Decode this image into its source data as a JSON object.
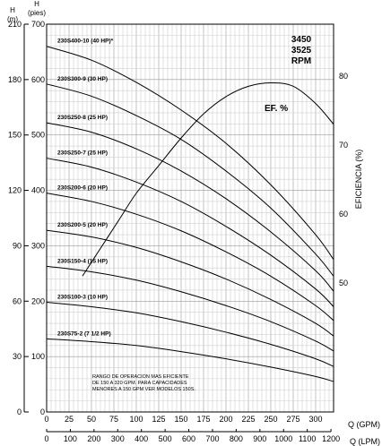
{
  "chart_data": {
    "type": "line",
    "rpm_lines": [
      "3450",
      "3525",
      "RPM"
    ],
    "x_axis": {
      "label": "Q (GPM)",
      "range": [
        0,
        320
      ],
      "ticks": [
        "0",
        "25",
        "50",
        "75",
        "100",
        "125",
        "150",
        "175",
        "200",
        "225",
        "250",
        "275",
        "300"
      ]
    },
    "x2_axis": {
      "label": "Q (LPM)",
      "range": [
        0,
        1211
      ],
      "ticks": [
        "0",
        "100",
        "200",
        "300",
        "400",
        "500",
        "600",
        "700",
        "800",
        "900",
        "1000",
        "1100",
        "1200"
      ]
    },
    "y_feet_axis": {
      "label": "H (pies)",
      "unit_line1": "H",
      "unit_line2": "(pies)",
      "range": [
        0,
        700
      ],
      "ticks": [
        "0",
        "100",
        "200",
        "300",
        "400",
        "500",
        "600",
        "700"
      ]
    },
    "y_m_axis": {
      "label": "H (m)",
      "unit_line1": "H",
      "unit_line2": "(m)",
      "range": [
        0,
        210
      ],
      "ticks": [
        "0",
        "30",
        "60",
        "90",
        "120",
        "150",
        "180",
        "210"
      ]
    },
    "y_eff_axis": {
      "label": "EFICIENCIA (%)",
      "range": [
        31.3,
        87.5
      ],
      "ticks": [
        "50",
        "60",
        "70",
        "80"
      ]
    },
    "grid": true,
    "series": [
      {
        "name": "230S400-10 (40 HP)*",
        "x": [
          0,
          50,
          100,
          150,
          200,
          250,
          300,
          320
        ],
        "y": [
          660,
          635,
          595,
          545,
          485,
          410,
          320,
          275
        ]
      },
      {
        "name": "230S300-9 (30 HP)",
        "x": [
          0,
          50,
          100,
          150,
          200,
          250,
          300,
          320
        ],
        "y": [
          592,
          570,
          535,
          492,
          435,
          368,
          285,
          245
        ]
      },
      {
        "name": "230S250-8 (25 HP)",
        "x": [
          0,
          50,
          100,
          150,
          200,
          250,
          300,
          320
        ],
        "y": [
          522,
          505,
          475,
          435,
          385,
          325,
          255,
          218
        ]
      },
      {
        "name": "230S250-7 (25 HP)",
        "x": [
          0,
          50,
          100,
          150,
          200,
          250,
          300,
          320
        ],
        "y": [
          458,
          442,
          415,
          380,
          335,
          283,
          222,
          190
        ]
      },
      {
        "name": "230S200-6 (20 HP)",
        "x": [
          0,
          50,
          100,
          150,
          200,
          250,
          300,
          320
        ],
        "y": [
          395,
          380,
          357,
          327,
          289,
          245,
          192,
          165
        ]
      },
      {
        "name": "230S200-5 (20 HP)",
        "x": [
          0,
          50,
          100,
          150,
          200,
          250,
          300,
          320
        ],
        "y": [
          328,
          316,
          297,
          271,
          240,
          203,
          160,
          137
        ]
      },
      {
        "name": "230S150-4 (15 HP)",
        "x": [
          0,
          50,
          100,
          150,
          200,
          250,
          300,
          320
        ],
        "y": [
          263,
          253,
          238,
          217,
          192,
          163,
          128,
          110
        ]
      },
      {
        "name": "230S100-3 (10 HP)",
        "x": [
          0,
          50,
          100,
          150,
          200,
          250,
          300,
          320
        ],
        "y": [
          198,
          190,
          179,
          163,
          144,
          122,
          96,
          82
        ]
      },
      {
        "name": "230S75-2 (7 1/2 HP)",
        "x": [
          0,
          50,
          100,
          150,
          200,
          250,
          300,
          320
        ],
        "y": [
          132,
          127,
          120,
          109,
          96,
          81,
          64,
          55
        ]
      }
    ],
    "efficiency_curve": {
      "label": "EF. %",
      "x": [
        40,
        60,
        80,
        100,
        125,
        150,
        175,
        200,
        225,
        250,
        275,
        300,
        320
      ],
      "y": [
        51,
        55,
        59,
        63,
        67,
        71,
        74.5,
        77,
        78.5,
        79,
        78.5,
        76,
        73
      ]
    },
    "annotation": {
      "lines": [
        "RANGO DE OPERACION MAS EFICIENTE",
        "DE 150 A 320 GPM. PARA CAPACIDADES",
        "MENORES A 150 GPM VER MODELOS 150S."
      ]
    }
  }
}
